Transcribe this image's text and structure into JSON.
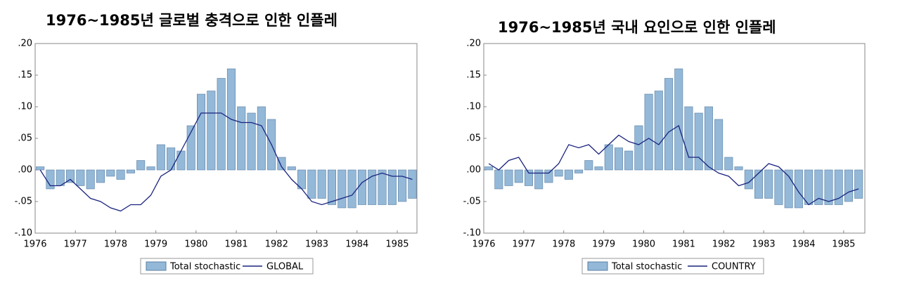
{
  "chart_data": [
    {
      "type": "bar-line",
      "title": "1976~1985년 글로벌 충격으로 인한 인플레",
      "x": [
        1976,
        1976.25,
        1976.5,
        1976.75,
        1977,
        1977.25,
        1977.5,
        1977.75,
        1978,
        1978.25,
        1978.5,
        1978.75,
        1979,
        1979.25,
        1979.5,
        1979.75,
        1980,
        1980.25,
        1980.5,
        1980.75,
        1981,
        1981.25,
        1981.5,
        1981.75,
        1982,
        1982.25,
        1982.5,
        1982.75,
        1983,
        1983.25,
        1983.5,
        1983.75,
        1984,
        1984.25,
        1984.5,
        1984.75,
        1985,
        1985.25
      ],
      "series": [
        {
          "name": "Total stochastic",
          "color": "#93b8d8",
          "values": [
            0.005,
            -0.03,
            -0.025,
            -0.02,
            -0.025,
            -0.03,
            -0.02,
            -0.01,
            -0.015,
            -0.005,
            0.015,
            0.005,
            0.04,
            0.035,
            0.03,
            0.07,
            0.12,
            0.125,
            0.145,
            0.16,
            0.1,
            0.09,
            0.1,
            0.08,
            0.02,
            0.005,
            -0.03,
            -0.045,
            -0.045,
            -0.055,
            -0.06,
            -0.06,
            -0.055,
            -0.055,
            -0.055,
            -0.055,
            -0.05,
            -0.045
          ]
        },
        {
          "name": "GLOBAL",
          "color": "#1a237e",
          "values": [
            0,
            -0.025,
            -0.025,
            -0.015,
            -0.03,
            -0.045,
            -0.05,
            -0.06,
            -0.065,
            -0.055,
            -0.055,
            -0.04,
            -0.01,
            0,
            0.03,
            0.06,
            0.09,
            0.09,
            0.09,
            0.08,
            0.075,
            0.075,
            0.07,
            0.04,
            0.005,
            -0.015,
            -0.03,
            -0.05,
            -0.055,
            -0.05,
            -0.045,
            -0.04,
            -0.02,
            -0.01,
            -0.005,
            -0.01,
            -0.01,
            -0.015
          ]
        }
      ],
      "xlim": [
        1976,
        1985.49
      ],
      "xticks": [
        1976,
        1977,
        1978,
        1979,
        1980,
        1981,
        1982,
        1983,
        1984,
        1985
      ],
      "ylim": [
        -0.1,
        0.2
      ],
      "yticks": [
        {
          "value": -0.1,
          "label": "-.10"
        },
        {
          "value": -0.05,
          "label": "-.05"
        },
        {
          "value": 0,
          "label": ".00"
        },
        {
          "value": 0.05,
          "label": ".05"
        },
        {
          "value": 0.1,
          "label": ".10"
        },
        {
          "value": 0.15,
          "label": ".15"
        },
        {
          "value": 0.2,
          "label": ".20"
        }
      ]
    },
    {
      "type": "bar-line",
      "title": "1976~1985년 국내 요인으로 인한 인플레",
      "x": [
        1976,
        1976.25,
        1976.5,
        1976.75,
        1977,
        1977.25,
        1977.5,
        1977.75,
        1978,
        1978.25,
        1978.5,
        1978.75,
        1979,
        1979.25,
        1979.5,
        1979.75,
        1980,
        1980.25,
        1980.5,
        1980.75,
        1981,
        1981.25,
        1981.5,
        1981.75,
        1982,
        1982.25,
        1982.5,
        1982.75,
        1983,
        1983.25,
        1983.5,
        1983.75,
        1984,
        1984.25,
        1984.5,
        1984.75,
        1985,
        1985.25
      ],
      "series": [
        {
          "name": "Total stochastic",
          "color": "#93b8d8",
          "values": [
            0.005,
            -0.03,
            -0.025,
            -0.02,
            -0.025,
            -0.03,
            -0.02,
            -0.01,
            -0.015,
            -0.005,
            0.015,
            0.005,
            0.04,
            0.035,
            0.03,
            0.07,
            0.12,
            0.125,
            0.145,
            0.16,
            0.1,
            0.09,
            0.1,
            0.08,
            0.02,
            0.005,
            -0.03,
            -0.045,
            -0.045,
            -0.055,
            -0.06,
            -0.06,
            -0.055,
            -0.055,
            -0.055,
            -0.055,
            -0.05,
            -0.045
          ]
        },
        {
          "name": "COUNTRY",
          "color": "#1a237e",
          "values": [
            0.01,
            0,
            0.015,
            0.02,
            -0.005,
            -0.005,
            -0.005,
            0.01,
            0.04,
            0.035,
            0.04,
            0.025,
            0.04,
            0.055,
            0.045,
            0.04,
            0.05,
            0.04,
            0.06,
            0.07,
            0.02,
            0.02,
            0.005,
            -0.005,
            -0.01,
            -0.025,
            -0.02,
            -0.005,
            0.01,
            0.005,
            -0.01,
            -0.035,
            -0.055,
            -0.045,
            -0.05,
            -0.045,
            -0.035,
            -0.03
          ]
        }
      ],
      "xlim": [
        1976,
        1985.53
      ],
      "xticks": [
        1976,
        1977,
        1978,
        1979,
        1980,
        1981,
        1982,
        1983,
        1984,
        1985
      ],
      "ylim": [
        -0.1,
        0.2
      ],
      "yticks": [
        {
          "value": -0.1,
          "label": "-.10"
        },
        {
          "value": -0.05,
          "label": "-.05"
        },
        {
          "value": 0,
          "label": ".00"
        },
        {
          "value": 0.05,
          "label": ".05"
        },
        {
          "value": 0.1,
          "label": ".10"
        },
        {
          "value": 0.15,
          "label": ".15"
        },
        {
          "value": 0.2,
          "label": ".20"
        }
      ]
    }
  ]
}
